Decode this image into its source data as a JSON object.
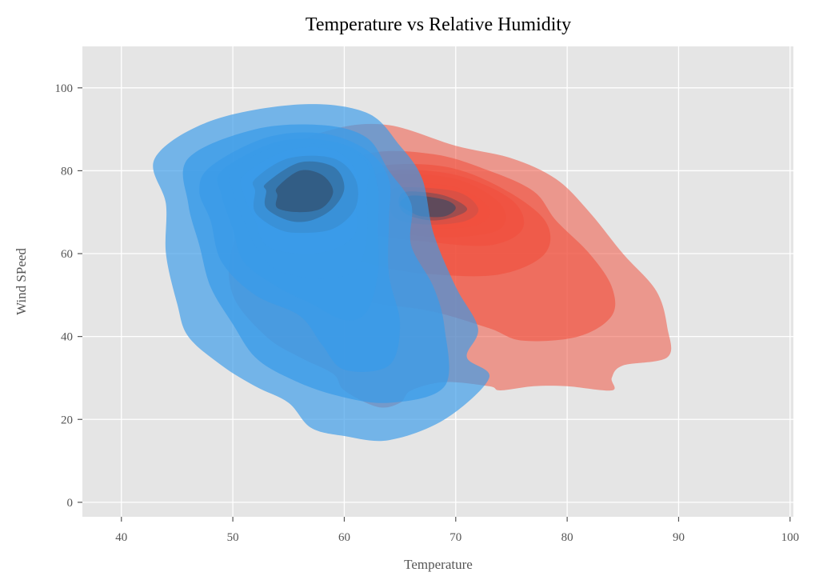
{
  "chart_data": {
    "type": "kde_contour",
    "title": "Temperature vs Relative Humidity",
    "xlabel": "Temperature",
    "ylabel": "Wind SPeed",
    "xlim": [
      36.5,
      100.3
    ],
    "ylim": [
      -3.5,
      110
    ],
    "xticks": [
      40,
      50,
      60,
      70,
      80,
      90,
      100
    ],
    "yticks": [
      0,
      20,
      40,
      60,
      80,
      100
    ],
    "grid": true,
    "background": "#e5e5e5",
    "series": [
      {
        "color": "#f0513f",
        "peak": [
          68,
          71
        ],
        "levels": [
          {
            "opacity": 0.28,
            "points": [
              [
                59,
                90
              ],
              [
                64,
                91
              ],
              [
                70,
                86
              ],
              [
                75,
                83
              ],
              [
                79,
                78
              ],
              [
                82,
                70
              ],
              [
                85,
                60
              ],
              [
                88,
                51
              ],
              [
                89,
                42
              ],
              [
                89,
                35
              ],
              [
                85,
                33
              ],
              [
                84,
                30
              ],
              [
                84,
                27
              ],
              [
                80,
                28
              ],
              [
                77,
                28
              ],
              [
                74,
                27
              ],
              [
                73,
                28
              ],
              [
                69,
                29
              ],
              [
                66,
                27
              ],
              [
                65,
                24
              ],
              [
                63,
                23
              ],
              [
                60,
                27
              ],
              [
                59,
                31
              ],
              [
                56,
                35
              ],
              [
                53,
                40
              ],
              [
                50,
                50
              ],
              [
                50,
                62
              ],
              [
                53,
                73
              ],
              [
                54,
                84
              ]
            ]
          },
          {
            "opacity": 0.34,
            "points": [
              [
                62,
                84
              ],
              [
                68,
                84
              ],
              [
                73,
                80
              ],
              [
                77,
                75
              ],
              [
                79,
                68
              ],
              [
                82,
                60
              ],
              [
                84,
                52
              ],
              [
                84,
                45
              ],
              [
                81,
                40
              ],
              [
                76,
                39
              ],
              [
                73,
                42
              ],
              [
                68,
                46
              ],
              [
                63,
                48
              ],
              [
                59,
                50
              ],
              [
                56,
                56
              ],
              [
                56,
                65
              ],
              [
                58,
                76
              ]
            ]
          },
          {
            "opacity": 0.4,
            "points": [
              [
                63,
                81
              ],
              [
                69,
                81
              ],
              [
                74,
                76
              ],
              [
                78,
                68
              ],
              [
                78,
                60
              ],
              [
                74,
                55
              ],
              [
                68,
                55
              ],
              [
                63,
                57
              ],
              [
                59,
                61
              ],
              [
                58,
                68
              ],
              [
                60,
                76
              ]
            ]
          },
          {
            "opacity": 0.46,
            "points": [
              [
                64,
                80
              ],
              [
                70,
                79
              ],
              [
                75,
                73
              ],
              [
                76,
                66
              ],
              [
                73,
                62
              ],
              [
                67,
                63
              ],
              [
                62,
                65
              ],
              [
                60,
                70
              ],
              [
                61,
                76
              ]
            ]
          },
          {
            "opacity": 0.52,
            "points": [
              [
                64,
                79
              ],
              [
                70,
                78
              ],
              [
                74,
                72
              ],
              [
                74,
                66
              ],
              [
                70,
                64
              ],
              [
                65,
                65
              ],
              [
                62,
                69
              ],
              [
                62,
                75
              ]
            ]
          },
          {
            "opacity": 0.58,
            "points": [
              [
                65,
                77
              ],
              [
                70,
                76
              ],
              [
                73,
                71
              ],
              [
                72,
                67
              ],
              [
                68,
                66
              ],
              [
                64,
                67
              ],
              [
                63,
                71
              ],
              [
                63,
                75
              ]
            ]
          },
          {
            "opacity": 0.64,
            "points": [
              [
                65,
                76
              ],
              [
                70,
                75
              ],
              [
                72,
                71
              ],
              [
                71,
                68
              ],
              [
                68,
                67
              ],
              [
                65,
                68
              ],
              [
                64,
                71
              ],
              [
                64,
                74
              ]
            ]
          },
          {
            "opacity": 0.7,
            "points": [
              [
                66,
                75
              ],
              [
                69,
                74
              ],
              [
                71,
                71
              ],
              [
                70,
                69
              ],
              [
                68,
                68
              ],
              [
                66,
                69
              ],
              [
                65,
                71
              ],
              [
                65,
                74
              ]
            ]
          },
          {
            "opacity": 0.76,
            "points": [
              [
                66,
                74
              ],
              [
                69,
                73
              ],
              [
                70,
                71
              ],
              [
                69,
                69
              ],
              [
                67,
                69
              ],
              [
                66,
                70
              ],
              [
                65,
                72
              ]
            ]
          }
        ]
      },
      {
        "color": "#3a9be8",
        "peak": [
          57,
          73
        ],
        "levels": [
          {
            "opacity": 0.42,
            "points": [
              [
                43,
                83
              ],
              [
                48,
                92
              ],
              [
                56,
                96
              ],
              [
                62,
                94
              ],
              [
                65,
                86
              ],
              [
                67,
                78
              ],
              [
                68,
                65
              ],
              [
                70,
                52
              ],
              [
                72,
                42
              ],
              [
                71,
                35
              ],
              [
                73,
                30
              ],
              [
                69,
                20
              ],
              [
                64,
                15
              ],
              [
                60,
                16
              ],
              [
                57,
                18
              ],
              [
                55,
                24
              ],
              [
                52,
                28
              ],
              [
                49,
                33
              ],
              [
                46,
                40
              ],
              [
                45,
                48
              ],
              [
                44,
                60
              ],
              [
                44,
                72
              ]
            ]
          },
          {
            "opacity": 0.48,
            "points": [
              [
                46,
                83
              ],
              [
                52,
                90
              ],
              [
                58,
                91
              ],
              [
                62,
                88
              ],
              [
                64,
                80
              ],
              [
                66,
                72
              ],
              [
                66,
                62
              ],
              [
                68,
                52
              ],
              [
                69,
                42
              ],
              [
                69,
                28
              ],
              [
                64,
                24
              ],
              [
                59,
                26
              ],
              [
                55,
                30
              ],
              [
                52,
                35
              ],
              [
                50,
                43
              ],
              [
                48,
                52
              ],
              [
                47,
                62
              ],
              [
                46,
                72
              ]
            ]
          },
          {
            "opacity": 0.54,
            "points": [
              [
                48,
                81
              ],
              [
                53,
                88
              ],
              [
                58,
                89
              ],
              [
                62,
                85
              ],
              [
                64,
                78
              ],
              [
                64,
                68
              ],
              [
                64,
                55
              ],
              [
                65,
                43
              ],
              [
                64,
                33
              ],
              [
                60,
                32
              ],
              [
                58,
                38
              ],
              [
                56,
                45
              ],
              [
                52,
                50
              ],
              [
                49,
                58
              ],
              [
                48,
                68
              ],
              [
                47,
                75
              ]
            ]
          },
          {
            "opacity": 0.6,
            "points": [
              [
                49,
                80
              ],
              [
                54,
                87
              ],
              [
                59,
                87
              ],
              [
                62,
                83
              ],
              [
                63,
                76
              ],
              [
                63,
                66
              ],
              [
                63,
                55
              ],
              [
                62,
                46
              ],
              [
                60,
                44
              ],
              [
                57,
                48
              ],
              [
                54,
                52
              ],
              [
                51,
                58
              ],
              [
                50,
                66
              ],
              [
                49,
                74
              ]
            ]
          },
          {
            "opacity": 0.66,
            "points": [
              [
                50,
                80
              ],
              [
                54,
                86
              ],
              [
                59,
                86
              ],
              [
                62,
                82
              ],
              [
                62,
                74
              ],
              [
                62,
                64
              ],
              [
                61,
                56
              ],
              [
                58,
                54
              ],
              [
                54,
                56
              ],
              [
                52,
                62
              ],
              [
                51,
                68
              ],
              [
                50,
                75
              ]
            ]
          },
          {
            "opacity": 0.72,
            "points": [
              [
                51,
                79
              ],
              [
                55,
                85
              ],
              [
                59,
                85
              ],
              [
                61,
                80
              ],
              [
                61,
                73
              ],
              [
                61,
                65
              ],
              [
                59,
                61
              ],
              [
                56,
                60
              ],
              [
                53,
                62
              ],
              [
                52,
                68
              ],
              [
                51,
                74
              ]
            ]
          },
          {
            "opacity": 0.78,
            "points": [
              [
                52,
                78
              ],
              [
                55,
                83
              ],
              [
                59,
                83
              ],
              [
                61,
                78
              ],
              [
                61,
                71
              ],
              [
                59,
                66
              ],
              [
                56,
                65
              ],
              [
                54,
                66
              ],
              [
                52,
                70
              ],
              [
                52,
                75
              ]
            ]
          },
          {
            "opacity": 0.84,
            "points": [
              [
                53,
                77
              ],
              [
                56,
                82
              ],
              [
                59,
                81
              ],
              [
                60,
                76
              ],
              [
                59,
                71
              ],
              [
                57,
                68
              ],
              [
                55,
                68
              ],
              [
                53,
                71
              ],
              [
                53,
                75
              ]
            ]
          },
          {
            "opacity": 0.9,
            "points": [
              [
                54,
                76
              ],
              [
                56,
                80
              ],
              [
                58,
                79
              ],
              [
                59,
                75
              ],
              [
                58,
                71
              ],
              [
                56,
                70
              ],
              [
                54,
                71
              ],
              [
                54,
                74
              ]
            ]
          }
        ]
      }
    ]
  }
}
